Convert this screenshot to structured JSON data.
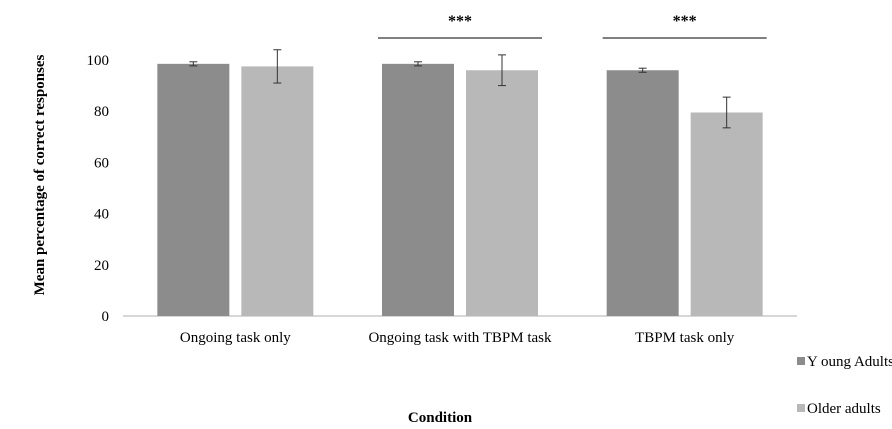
{
  "chart_data": {
    "type": "bar",
    "title": "",
    "xlabel": "Condition",
    "ylabel": "Mean percentage of correct responses",
    "ylim": [
      0,
      100
    ],
    "yticks": [
      "0",
      "20",
      "40",
      "60",
      "80",
      "100"
    ],
    "categories": [
      "Ongoing task only",
      "Ongoing task with TBPM task",
      "TBPM task only"
    ],
    "series": [
      {
        "name": "Y oung Adults",
        "color": "#8c8c8c",
        "values": [
          98.5,
          98.5,
          96
        ],
        "errors": [
          0.8,
          0.8,
          0.8
        ]
      },
      {
        "name": "Older adults",
        "color": "#b8b8b8",
        "values": [
          97.5,
          96,
          79.5
        ],
        "errors": [
          6.5,
          6,
          6
        ]
      }
    ],
    "significance": [
      {
        "category_index": 1,
        "label": "***"
      },
      {
        "category_index": 2,
        "label": "***"
      }
    ],
    "grid": false,
    "legend_position": "right"
  }
}
